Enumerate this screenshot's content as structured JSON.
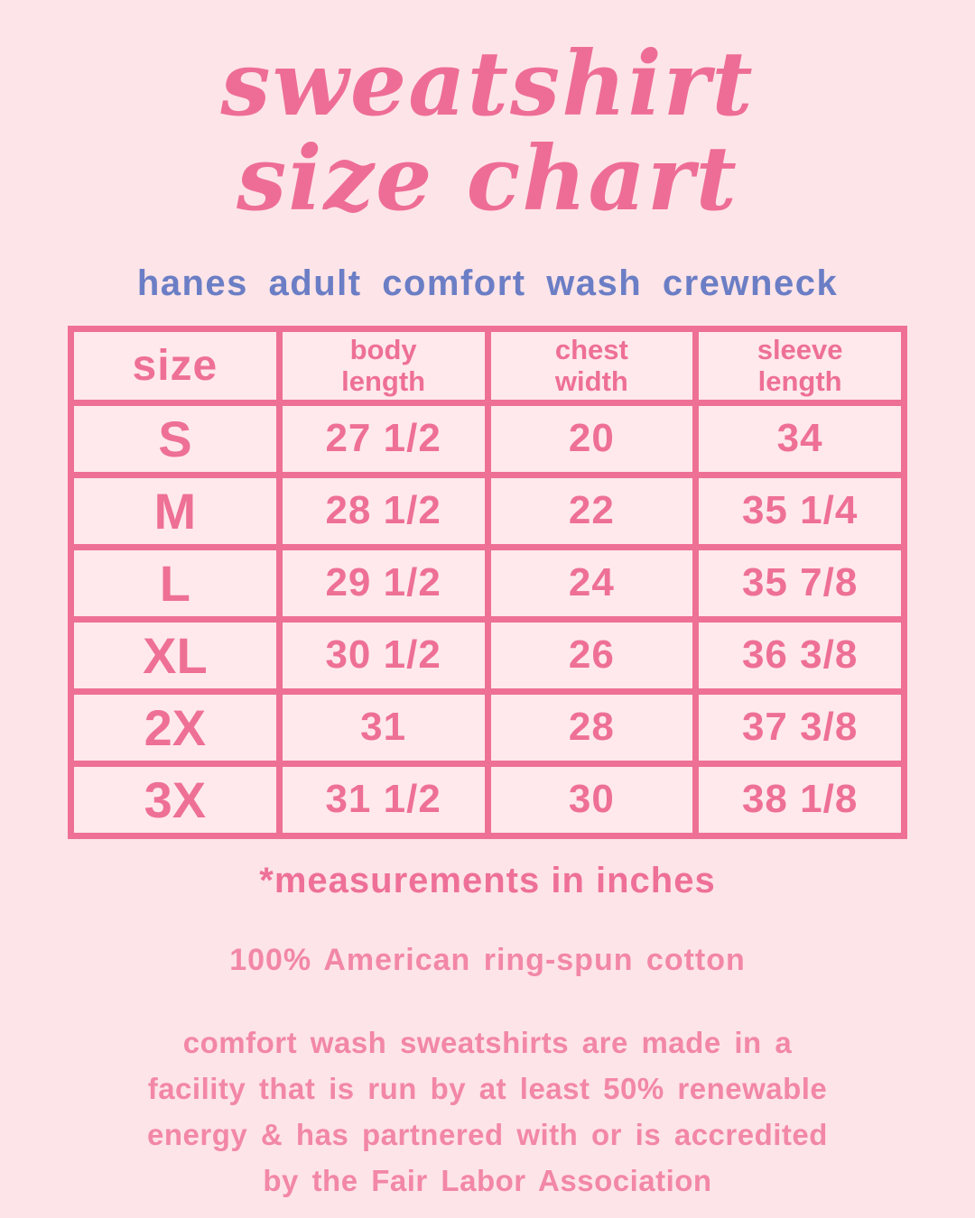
{
  "colors": {
    "background": "#fde4e8",
    "cell_background": "#ffe9ec",
    "title_pink": "#ee6d96",
    "table_pink": "#ee7095",
    "soft_pink": "#f287a8",
    "subtitle_blue": "#6b7ec5"
  },
  "header": {
    "title": "sweatshirt\nsize chart",
    "subtitle": "hanes adult comfort wash crewneck"
  },
  "table": {
    "header_display": [
      "size",
      "body\nlength",
      "chest\nwidth",
      "sleeve\nlength"
    ]
  },
  "chart_data": {
    "type": "table",
    "title": "sweatshirt size chart",
    "subtitle": "hanes adult comfort wash crewneck",
    "columns": [
      "size",
      "body length",
      "chest width",
      "sleeve length"
    ],
    "rows": [
      [
        "S",
        "27 1/2",
        "20",
        "34"
      ],
      [
        "M",
        "28 1/2",
        "22",
        "35 1/4"
      ],
      [
        "L",
        "29 1/2",
        "24",
        "35 7/8"
      ],
      [
        "XL",
        "30 1/2",
        "26",
        "36 3/8"
      ],
      [
        "2X",
        "31",
        "28",
        "37 3/8"
      ],
      [
        "3X",
        "31 1/2",
        "30",
        "38 1/8"
      ]
    ],
    "units": "inches"
  },
  "notes": {
    "footnote": "*measurements in inches",
    "material": "100% American ring-spun cotton",
    "production": "comfort wash sweatshirts are made in a\nfacility that is run by at least 50% renewable\nenergy &  has partnered with or is accredited\nby the Fair Labor Association"
  }
}
